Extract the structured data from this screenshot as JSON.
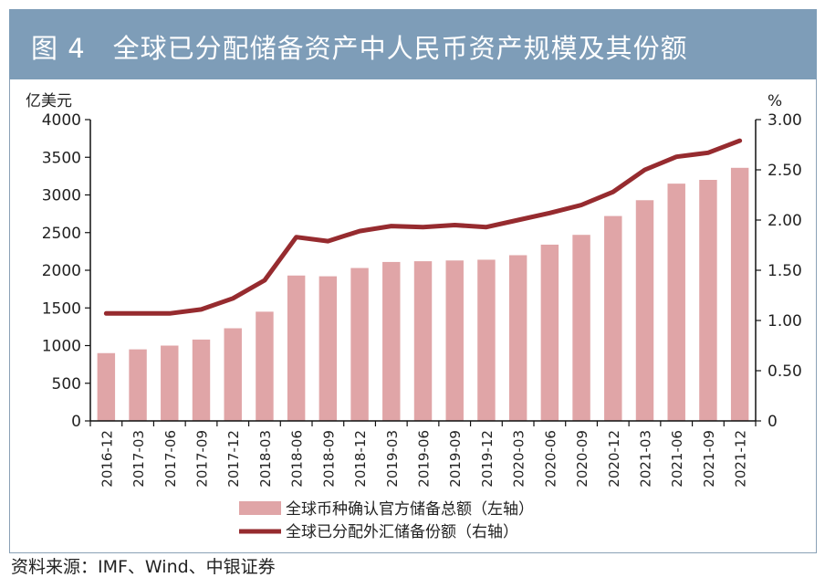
{
  "header": {
    "title": "图 4　全球已分配储备资产中人民币资产规模及其份额"
  },
  "source": "资料来源：IMF、Wind、中银证券",
  "colors": {
    "bar": "#e0a5a7",
    "line": "#962b2f",
    "header_bg": "#7e9db8"
  },
  "chart_data": {
    "type": "bar",
    "title": "全球已分配储备资产中人民币资产规模及其份额",
    "left_axis_label": "亿美元",
    "right_axis_label": "%",
    "left_ylim": [
      0,
      4000
    ],
    "right_ylim": [
      0,
      3
    ],
    "left_ticks": [
      "0",
      "500",
      "1000",
      "1500",
      "2000",
      "2500",
      "3000",
      "3500",
      "4000"
    ],
    "right_ticks": [
      "0",
      "0.50",
      "1.00",
      "1.50",
      "2.00",
      "2.50",
      "3.00"
    ],
    "categories": [
      "2016-12",
      "2017-03",
      "2017-06",
      "2017-09",
      "2017-12",
      "2018-03",
      "2018-06",
      "2018-09",
      "2018-12",
      "2019-03",
      "2019-06",
      "2019-09",
      "2019-12",
      "2020-03",
      "2020-06",
      "2020-09",
      "2020-12",
      "2021-03",
      "2021-06",
      "2021-09",
      "2021-12"
    ],
    "series": [
      {
        "name": "全球币种确认官方储备总额（左轴）",
        "type": "bar",
        "axis": "left",
        "values": [
          900,
          950,
          1000,
          1080,
          1230,
          1450,
          1930,
          1920,
          2030,
          2110,
          2120,
          2130,
          2140,
          2200,
          2340,
          2470,
          2720,
          2930,
          3150,
          3200,
          3360
        ]
      },
      {
        "name": "全球已分配外汇储备份额（右轴）",
        "type": "line",
        "axis": "right",
        "values": [
          1.07,
          1.07,
          1.07,
          1.11,
          1.22,
          1.4,
          1.83,
          1.79,
          1.89,
          1.94,
          1.93,
          1.95,
          1.93,
          2.0,
          2.07,
          2.15,
          2.28,
          2.5,
          2.63,
          2.67,
          2.79
        ]
      }
    ],
    "legend_position": "bottom",
    "grid": false
  }
}
